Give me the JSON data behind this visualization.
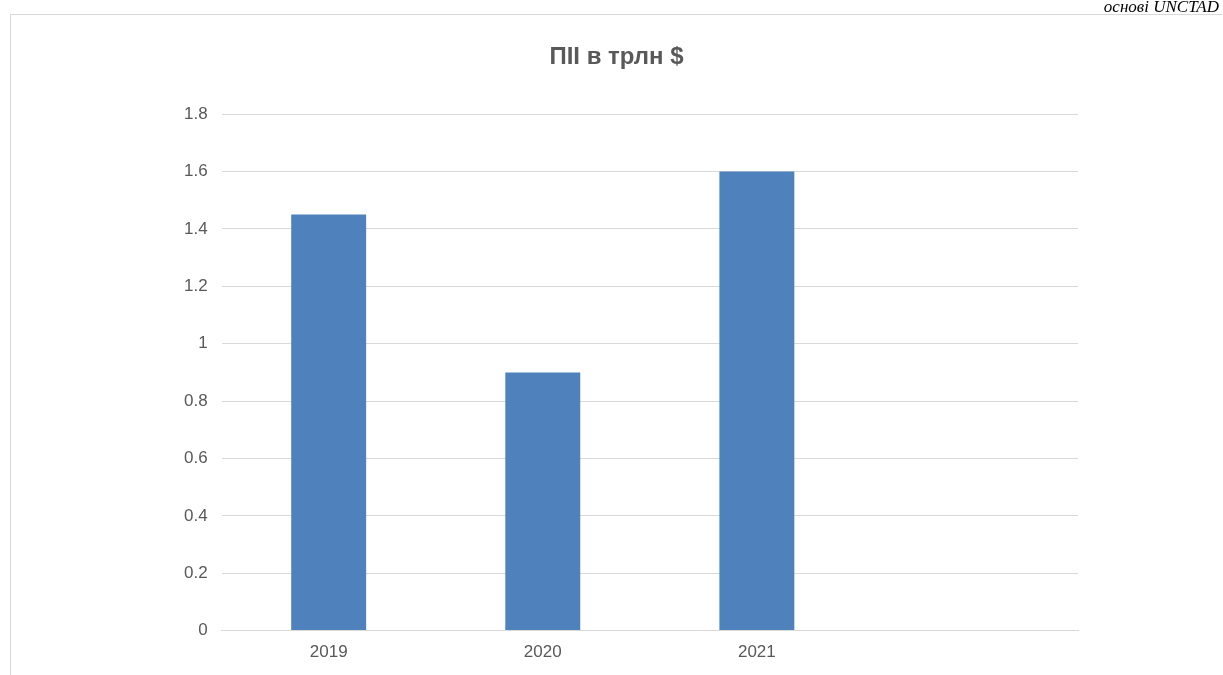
{
  "chart_data": {
    "type": "bar",
    "title": "ПІІ в трлн $",
    "categories": [
      "2019",
      "2020",
      "2021",
      null
    ],
    "values": [
      1.45,
      0.9,
      1.6,
      null
    ],
    "color": "#4f81bd",
    "ylim": [
      0,
      1.8
    ],
    "yticks": [
      0,
      {
        "value": 0.2,
        "label": "0.2"
      },
      {
        "value": 0.4,
        "label": "0.4"
      },
      {
        "value": 0.6,
        "label": "0.6"
      },
      {
        "value": 0.8,
        "label": "0.8"
      },
      1,
      {
        "value": 1.2,
        "label": "1.2"
      },
      {
        "value": 1.4,
        "label": "1.4"
      },
      {
        "value": 1.6,
        "label": "1.6"
      },
      {
        "value": 1.8,
        "label": "1.8"
      }
    ],
    "grid": "y",
    "legend": false,
    "annotations": [
      "основі UNCTAD"
    ]
  }
}
